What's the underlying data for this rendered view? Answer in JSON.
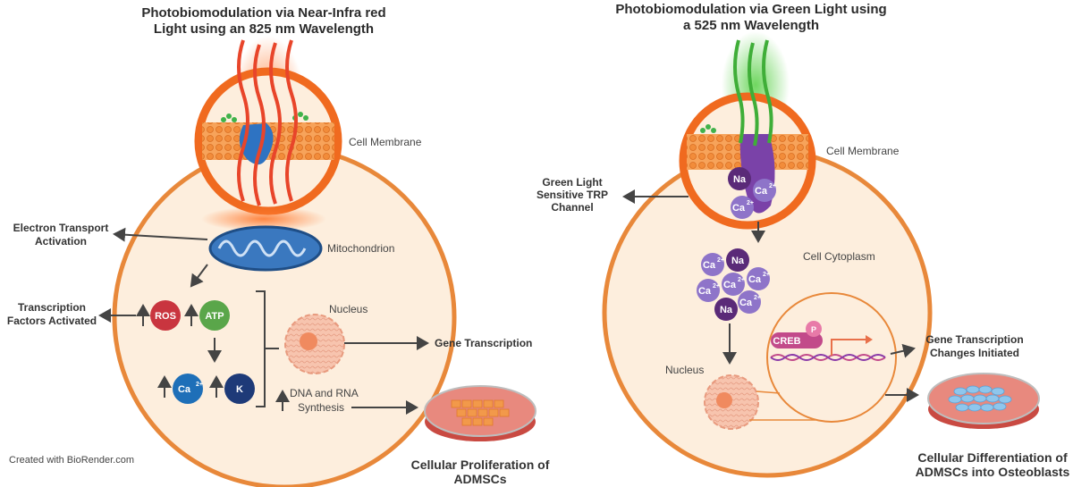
{
  "left": {
    "title_line1": "Photobiomodulation via Near-Infra red",
    "title_line2": "Light using an 825 nm Wavelength",
    "cell_membrane": "Cell Membrane",
    "mitochondrion": "Mitochondrion",
    "electron_transport_line1": "Electron Transport",
    "electron_transport_line2": "Activation",
    "transcription_line1": "Transcription",
    "transcription_line2": "Factors Activated",
    "ros": "ROS",
    "atp": "ATP",
    "ca": "Ca",
    "ca_sup": "2+",
    "k": "K",
    "nucleus": "Nucleus",
    "gene_transcription": "Gene Transcription",
    "dna_line1": "DNA and RNA",
    "dna_line2": "Synthesis",
    "outcome_line1": "Cellular Proliferation of",
    "outcome_line2": "ADMSCs",
    "credit": "Created with BioRender.com"
  },
  "right": {
    "title_line1": "Photobiomodulation via Green Light using",
    "title_line2": "a 525 nm Wavelength",
    "cell_membrane": "Cell Membrane",
    "trp_line1": "Green Light",
    "trp_line2": "Sensitive TRP",
    "trp_line3": "Channel",
    "cytoplasm": "Cell Cytoplasm",
    "na": "Na",
    "ca": "Ca",
    "ca_sup": "2+",
    "creb": "CREB",
    "p": "P",
    "nucleus": "Nucleus",
    "gene_changes_line1": "Gene Transcription",
    "gene_changes_line2": "Changes Initiated",
    "outcome_line1": "Cellular Differentiation of",
    "outcome_line2": "ADMSCs into Osteoblasts"
  },
  "colors": {
    "cell_fill": "#fdeedd",
    "cell_stroke": "#e8883a",
    "red_light": "#e8452a",
    "green_light": "#3fae38",
    "ros": "#c9353f",
    "atp": "#5aa64a",
    "ca_left": "#1e6fb8",
    "k": "#1e3a78",
    "na": "#5a2a78",
    "ca_right": "#8e74c9"
  }
}
